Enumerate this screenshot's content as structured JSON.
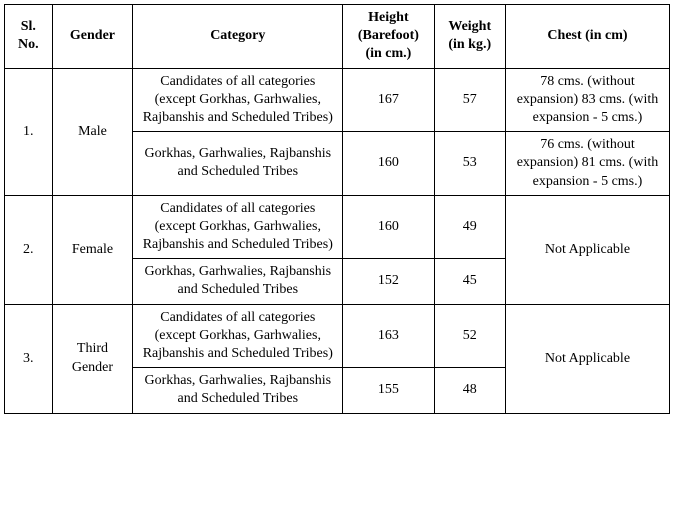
{
  "headers": {
    "sl": "Sl. No.",
    "gender": "Gender",
    "category": "Category",
    "height": "Height (Barefoot) (in cm.)",
    "weight": "Weight (in kg.)",
    "chest": "Chest (in cm)"
  },
  "groups": [
    {
      "sl": "1.",
      "gender": "Male",
      "rows": [
        {
          "category": "Candidates of all categories (except Gorkhas, Garhwalies, Rajbanshis and Scheduled Tribes)",
          "height": "167",
          "weight": "57",
          "chest": "78 cms. (without expansion) 83 cms. (with expansion - 5 cms.)"
        },
        {
          "category": "Gorkhas, Garhwalies, Rajbanshis and Scheduled Tribes",
          "height": "160",
          "weight": "53",
          "chest": "76 cms. (without expansion) 81 cms. (with expansion - 5 cms.)"
        }
      ]
    },
    {
      "sl": "2.",
      "gender": "Female",
      "chest_merged": "Not Applicable",
      "rows": [
        {
          "category": "Candidates of all categories (except Gorkhas, Garhwalies, Rajbanshis and Scheduled Tribes)",
          "height": "160",
          "weight": "49"
        },
        {
          "category": "Gorkhas, Garhwalies, Rajbanshis and Scheduled Tribes",
          "height": "152",
          "weight": "45"
        }
      ]
    },
    {
      "sl": "3.",
      "gender": "Third Gender",
      "chest_merged": "Not Applicable",
      "rows": [
        {
          "category": "Candidates of all categories (except Gorkhas, Garhwalies, Rajbanshis and Scheduled Tribes)",
          "height": "163",
          "weight": "52"
        },
        {
          "category": "Gorkhas, Garhwalies, Rajbanshis and Scheduled Tribes",
          "height": "155",
          "weight": "48"
        }
      ]
    }
  ]
}
